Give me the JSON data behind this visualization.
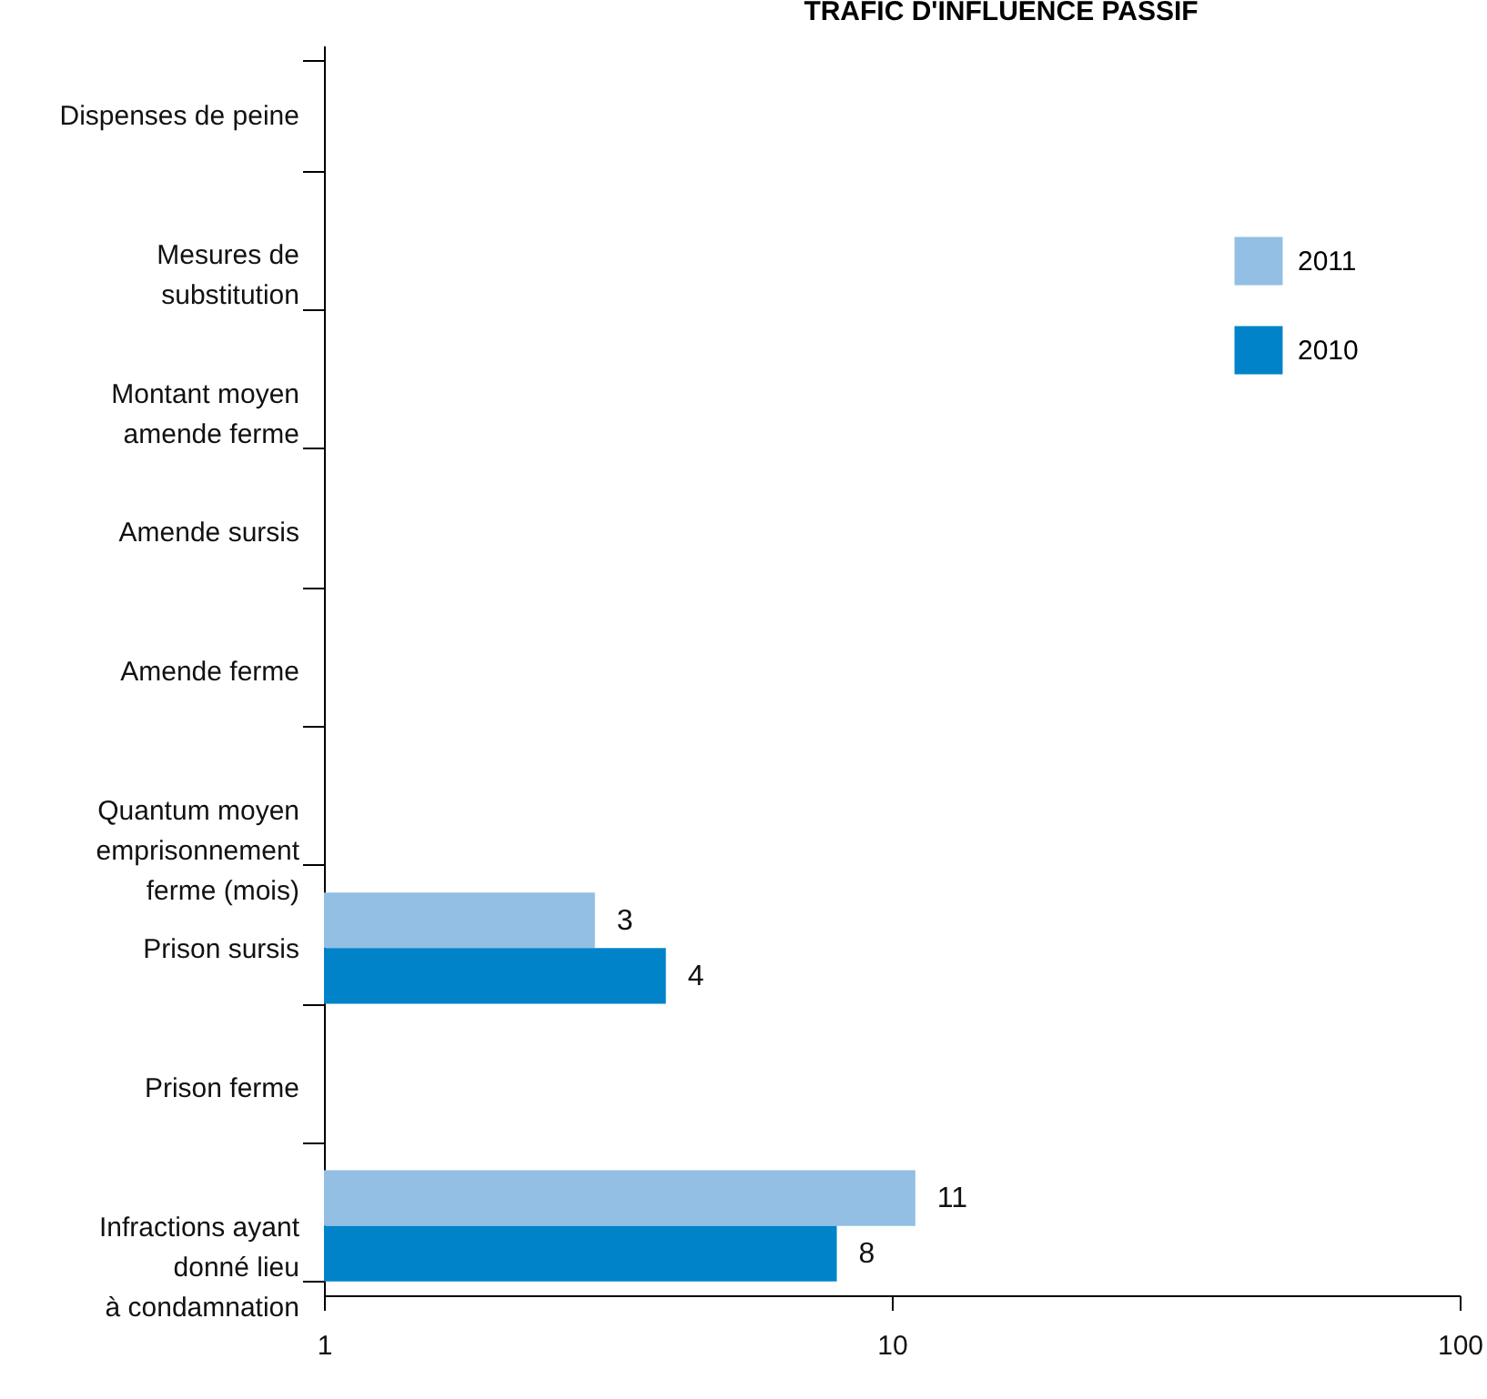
{
  "chart_data": {
    "type": "bar",
    "orientation": "horizontal",
    "title": "TRAFIC D'INFLUENCE PASSIF",
    "categories": [
      "Dispenses de peine",
      "Mesures de\nsubstitution",
      "Montant moyen\namende ferme",
      "Amende sursis",
      "Amende ferme",
      "Quantum moyen\nemprisonnement\nferme (mois)",
      "Prison sursis",
      "Prison ferme",
      "Infractions ayant\ndonné lieu\nà condamnation"
    ],
    "series": [
      {
        "name": "2011",
        "color": "#92bfe3",
        "values": [
          null,
          null,
          null,
          null,
          null,
          null,
          3,
          null,
          11
        ]
      },
      {
        "name": "2010",
        "color": "#0083c9",
        "values": [
          null,
          null,
          null,
          null,
          null,
          null,
          4,
          null,
          8
        ]
      }
    ],
    "log": "x",
    "xlim": [
      1,
      100
    ],
    "xticks": [
      1,
      10,
      100
    ],
    "grid": false,
    "legend": "top right",
    "data_labels": true
  }
}
